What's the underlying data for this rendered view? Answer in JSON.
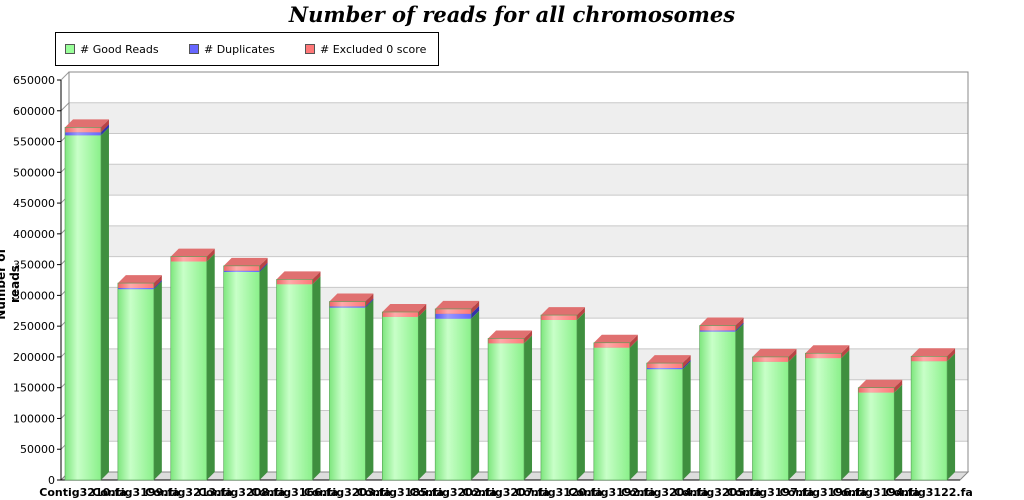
{
  "chart_data": {
    "type": "bar",
    "stacked": true,
    "style": "3d",
    "title": "Number of reads for all chromosomes",
    "xlabel": "",
    "ylabel": "Number of reads",
    "ylim": [
      0,
      650000
    ],
    "yticks": [
      0,
      50000,
      100000,
      150000,
      200000,
      250000,
      300000,
      350000,
      400000,
      450000,
      500000,
      550000,
      600000,
      650000
    ],
    "grid": true,
    "legend_position": "top-left",
    "categories": [
      "Contig3210.fa",
      "Contig3199.fa",
      "Contig3213.fa",
      "Contig3208.fa",
      "Contig3166.fa",
      "Contig3203.fa",
      "Contig3185.fa",
      "Contig3202.fa",
      "Contig3207.fa",
      "Contig3120.fa",
      "Contig3192.fa",
      "Contig3204.fa",
      "Contig3205.fa",
      "Contig3197.fa",
      "Contig3196.fa",
      "Contig3194.fa",
      "Contig3122.fa"
    ],
    "series": [
      {
        "name": "# Good Reads",
        "color": "#99FF99",
        "values": [
          560000,
          310000,
          355000,
          338000,
          318000,
          280000,
          265000,
          262000,
          222000,
          260000,
          215000,
          180000,
          241000,
          192000,
          198000,
          142000,
          193000
        ]
      },
      {
        "name": "# Duplicates",
        "color": "#6666FF",
        "values": [
          5000,
          2000,
          0,
          2000,
          0,
          2000,
          0,
          8000,
          0,
          0,
          0,
          2000,
          2000,
          0,
          0,
          0,
          0
        ]
      },
      {
        "name": "# Excluded 0 score",
        "color": "#FF7777",
        "values": [
          8000,
          8000,
          8000,
          8000,
          8000,
          8000,
          8000,
          8000,
          8000,
          8000,
          8000,
          8000,
          8000,
          8000,
          8000,
          8000,
          8000
        ]
      }
    ]
  }
}
